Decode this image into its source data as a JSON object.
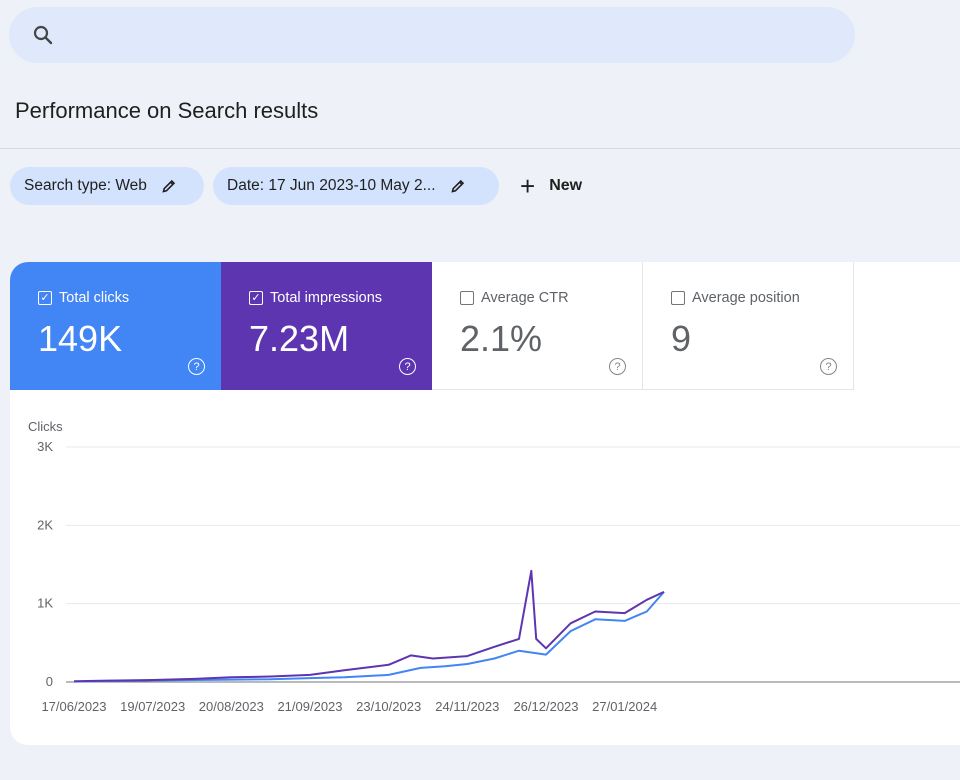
{
  "search": {
    "placeholder": "",
    "icon": "search-icon"
  },
  "page_title": "Performance on Search results",
  "filters": [
    {
      "label": "Search type: Web",
      "icon": "edit-icon"
    },
    {
      "label": "Date: 17 Jun 2023-10 May 2...",
      "icon": "edit-icon"
    }
  ],
  "new_button": {
    "icon": "plus-icon",
    "label": "New"
  },
  "metrics": [
    {
      "label": "Total clicks",
      "value": "149K",
      "checked": true,
      "color": "#4285f4"
    },
    {
      "label": "Total impressions",
      "value": "7.23M",
      "checked": true,
      "color": "#5e35b1"
    },
    {
      "label": "Average CTR",
      "value": "2.1%",
      "checked": false
    },
    {
      "label": "Average position",
      "value": "9",
      "checked": false
    }
  ],
  "chart_data": {
    "type": "line",
    "ylabel": "Clicks",
    "ylim": [
      0,
      3000
    ],
    "y_ticks": [
      "0",
      "1K",
      "2K",
      "3K"
    ],
    "x_ticks": [
      "17/06/2023",
      "19/07/2023",
      "20/08/2023",
      "21/09/2023",
      "23/10/2023",
      "24/11/2023",
      "26/12/2023",
      "27/01/2024"
    ],
    "x_tick_dates": [
      "2023-06-17",
      "2023-07-19",
      "2023-08-20",
      "2023-09-21",
      "2023-10-23",
      "2023-11-24",
      "2023-12-26",
      "2024-01-27"
    ],
    "grid": true,
    "series": [
      {
        "color": "#4285f4",
        "points": [
          [
            "2023-06-17",
            5
          ],
          [
            "2023-07-01",
            12
          ],
          [
            "2023-07-19",
            20
          ],
          [
            "2023-08-05",
            25
          ],
          [
            "2023-08-20",
            30
          ],
          [
            "2023-09-05",
            35
          ],
          [
            "2023-09-21",
            50
          ],
          [
            "2023-10-05",
            60
          ],
          [
            "2023-10-23",
            90
          ],
          [
            "2023-11-05",
            180
          ],
          [
            "2023-11-15",
            200
          ],
          [
            "2023-11-24",
            230
          ],
          [
            "2023-12-05",
            300
          ],
          [
            "2023-12-15",
            400
          ],
          [
            "2023-12-26",
            350
          ],
          [
            "2024-01-05",
            650
          ],
          [
            "2024-01-15",
            800
          ],
          [
            "2024-01-27",
            780
          ],
          [
            "2024-02-05",
            900
          ],
          [
            "2024-02-12",
            1150
          ]
        ]
      },
      {
        "color": "#5e35b1",
        "points": [
          [
            "2023-06-17",
            10
          ],
          [
            "2023-07-01",
            18
          ],
          [
            "2023-07-19",
            25
          ],
          [
            "2023-08-05",
            40
          ],
          [
            "2023-08-20",
            60
          ],
          [
            "2023-09-05",
            70
          ],
          [
            "2023-09-21",
            90
          ],
          [
            "2023-10-05",
            150
          ],
          [
            "2023-10-23",
            220
          ],
          [
            "2023-11-01",
            340
          ],
          [
            "2023-11-10",
            300
          ],
          [
            "2023-11-24",
            330
          ],
          [
            "2023-12-05",
            450
          ],
          [
            "2023-12-15",
            550
          ],
          [
            "2023-12-20",
            1420
          ],
          [
            "2023-12-22",
            550
          ],
          [
            "2023-12-26",
            430
          ],
          [
            "2024-01-05",
            750
          ],
          [
            "2024-01-15",
            900
          ],
          [
            "2024-01-27",
            880
          ],
          [
            "2024-02-05",
            1050
          ],
          [
            "2024-02-12",
            1150
          ]
        ]
      }
    ]
  }
}
